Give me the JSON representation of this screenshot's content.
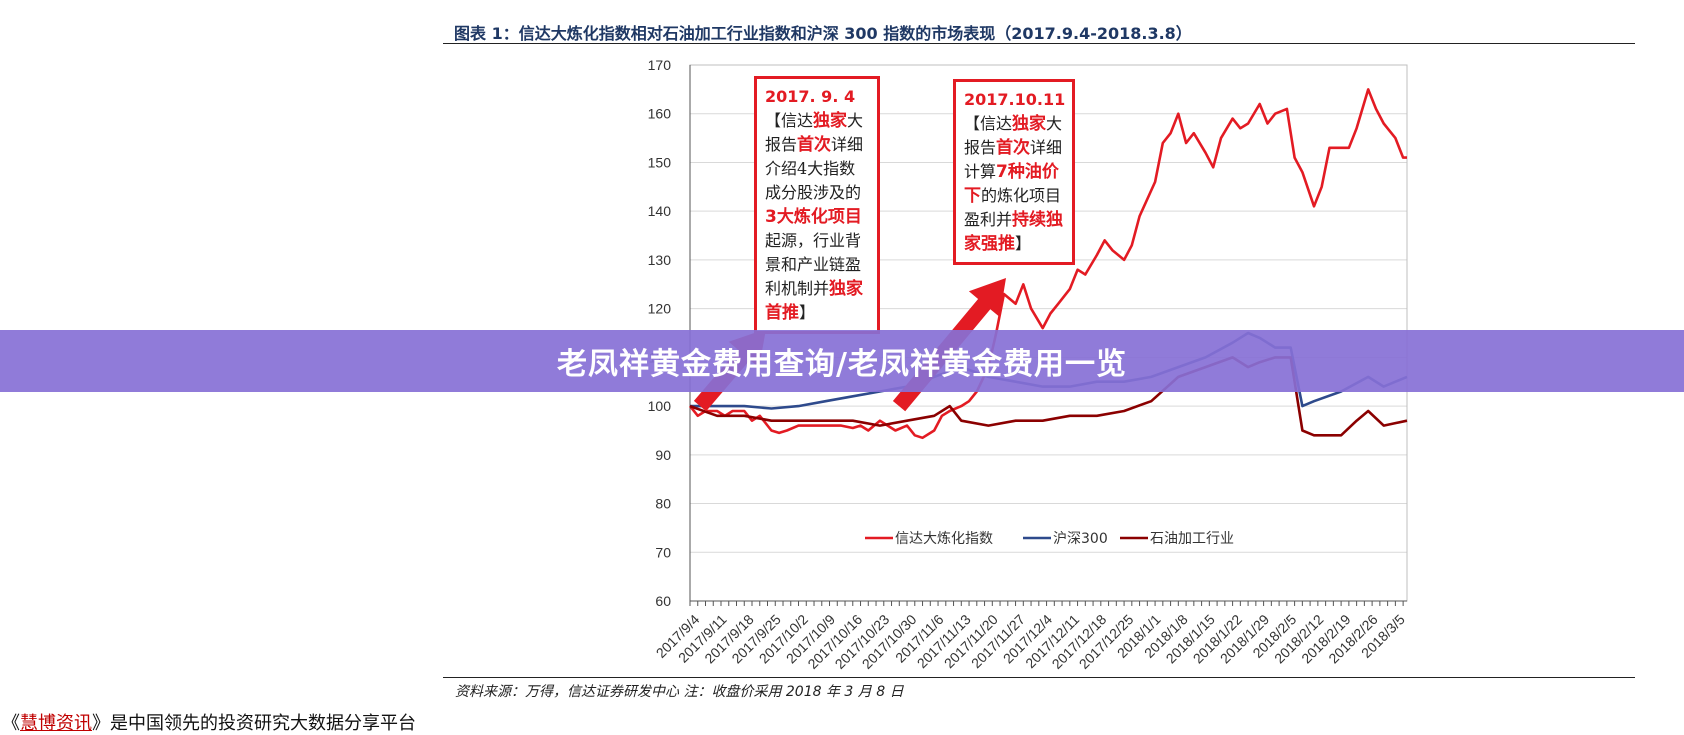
{
  "figure": {
    "title": "图表 1：信达大炼化指数相对石油加工行业指数和沪深 300 指数的市场表现（2017.9.4-2018.3.8）",
    "source": "资料来源：万得，信达证券研发中心 注：收盘价采用 2018 年 3 月 8 日"
  },
  "banner": {
    "text": "老凤祥黄金费用查询/老凤祥黄金费用一览"
  },
  "footer": {
    "prefix": "《",
    "link": "慧博资讯",
    "suffix": "》是中国领先的投资研究大数据分享平台"
  },
  "colors": {
    "red": "#e31b23",
    "blue": "#2e4a8c",
    "darkred": "#8b0000",
    "title": "#1f3864",
    "banner": "#8770d6"
  },
  "annotations": [
    {
      "id": "ann1",
      "date": "2017. 9. 4",
      "parts": [
        [
          "n",
          "【信达"
        ],
        [
          "h",
          "独家"
        ],
        [
          "n",
          "大报告"
        ],
        [
          "h",
          "首次"
        ],
        [
          "n",
          "详细介绍4大指数成分股涉及的"
        ],
        [
          "h",
          "3大炼化项目"
        ],
        [
          "n",
          "起源，行业背景和产业链盈利机制并"
        ],
        [
          "h",
          "独家首推"
        ],
        [
          "n",
          "】"
        ]
      ]
    },
    {
      "id": "ann2",
      "date": "2017.10.11",
      "parts": [
        [
          "n",
          "【信达"
        ],
        [
          "h",
          "独家"
        ],
        [
          "n",
          "大报告"
        ],
        [
          "h",
          "首次"
        ],
        [
          "n",
          "详细计算"
        ],
        [
          "h",
          "7种油价下"
        ],
        [
          "n",
          "的炼化项目盈利并"
        ],
        [
          "h",
          "持续独家强推"
        ],
        [
          "n",
          "】"
        ]
      ]
    }
  ],
  "chart_data": {
    "type": "line",
    "ylim": [
      60,
      170
    ],
    "yticks": [
      60,
      70,
      80,
      90,
      100,
      110,
      120,
      130,
      140,
      150,
      160,
      170
    ],
    "x_tick_labels": [
      "2017/9/4",
      "2017/9/11",
      "2017/9/18",
      "2017/9/25",
      "2017/10/2",
      "2017/10/9",
      "2017/10/16",
      "2017/10/23",
      "2017/10/30",
      "2017/11/6",
      "2017/11/13",
      "2017/11/20",
      "2017/11/27",
      "2017/12/4",
      "2017/12/11",
      "2017/12/18",
      "2017/12/25",
      "2018/1/1",
      "2018/1/8",
      "2018/1/15",
      "2018/1/22",
      "2018/1/29",
      "2018/2/5",
      "2018/2/12",
      "2018/2/19",
      "2018/2/26",
      "2018/3/5"
    ],
    "x_range": [
      "2017/9/4",
      "2018/3/8"
    ],
    "legend_position": "bottom-center",
    "grid": "horizontal",
    "series": [
      {
        "name": "信达大炼化指数",
        "color": "#e31b23",
        "points": [
          [
            "2017/9/4",
            100
          ],
          [
            "2017/9/6",
            98
          ],
          [
            "2017/9/8",
            99
          ],
          [
            "2017/9/11",
            99
          ],
          [
            "2017/9/13",
            98
          ],
          [
            "2017/9/15",
            99
          ],
          [
            "2017/9/18",
            99
          ],
          [
            "2017/9/20",
            97
          ],
          [
            "2017/9/22",
            98
          ],
          [
            "2017/9/25",
            95
          ],
          [
            "2017/9/27",
            94.5
          ],
          [
            "2017/9/29",
            95
          ],
          [
            "2017/10/2",
            96
          ],
          [
            "2017/10/4",
            96
          ],
          [
            "2017/10/9",
            96
          ],
          [
            "2017/10/11",
            96
          ],
          [
            "2017/10/13",
            96
          ],
          [
            "2017/10/16",
            95.5
          ],
          [
            "2017/10/18",
            96
          ],
          [
            "2017/10/20",
            95
          ],
          [
            "2017/10/23",
            97
          ],
          [
            "2017/10/25",
            96
          ],
          [
            "2017/10/27",
            95
          ],
          [
            "2017/10/30",
            96
          ],
          [
            "2017/11/1",
            94
          ],
          [
            "2017/11/3",
            93.5
          ],
          [
            "2017/11/6",
            95
          ],
          [
            "2017/11/8",
            98
          ],
          [
            "2017/11/10",
            99
          ],
          [
            "2017/11/13",
            100
          ],
          [
            "2017/11/15",
            101
          ],
          [
            "2017/11/17",
            103
          ],
          [
            "2017/11/20",
            108
          ],
          [
            "2017/11/22",
            115
          ],
          [
            "2017/11/24",
            123
          ],
          [
            "2017/11/27",
            121
          ],
          [
            "2017/11/29",
            125
          ],
          [
            "2017/12/1",
            120
          ],
          [
            "2017/12/4",
            116
          ],
          [
            "2017/12/6",
            119
          ],
          [
            "2017/12/8",
            121
          ],
          [
            "2017/12/11",
            124
          ],
          [
            "2017/12/13",
            128
          ],
          [
            "2017/12/15",
            127
          ],
          [
            "2017/12/18",
            131
          ],
          [
            "2017/12/20",
            134
          ],
          [
            "2017/12/22",
            132
          ],
          [
            "2017/12/25",
            130
          ],
          [
            "2017/12/27",
            133
          ],
          [
            "2017/12/29",
            139
          ],
          [
            "2018/1/2",
            146
          ],
          [
            "2018/1/4",
            154
          ],
          [
            "2018/1/6",
            156
          ],
          [
            "2018/1/8",
            160
          ],
          [
            "2018/1/10",
            154
          ],
          [
            "2018/1/12",
            156
          ],
          [
            "2018/1/15",
            152
          ],
          [
            "2018/1/17",
            149
          ],
          [
            "2018/1/19",
            155
          ],
          [
            "2018/1/22",
            159
          ],
          [
            "2018/1/24",
            157
          ],
          [
            "2018/1/26",
            158
          ],
          [
            "2018/1/29",
            162
          ],
          [
            "2018/1/31",
            158
          ],
          [
            "2018/2/2",
            160
          ],
          [
            "2018/2/5",
            161
          ],
          [
            "2018/2/7",
            151
          ],
          [
            "2018/2/9",
            148
          ],
          [
            "2018/2/12",
            141
          ],
          [
            "2018/2/14",
            145
          ],
          [
            "2018/2/16",
            153
          ],
          [
            "2018/2/19",
            153
          ],
          [
            "2018/2/21",
            153
          ],
          [
            "2018/2/23",
            157
          ],
          [
            "2018/2/26",
            165
          ],
          [
            "2018/2/28",
            161
          ],
          [
            "2018/3/2",
            158
          ],
          [
            "2018/3/5",
            155
          ],
          [
            "2018/3/7",
            151
          ],
          [
            "2018/3/8",
            151
          ]
        ]
      },
      {
        "name": "沪深300",
        "color": "#2e4a8c",
        "points": [
          [
            "2017/9/4",
            100
          ],
          [
            "2017/9/11",
            100
          ],
          [
            "2017/9/18",
            100
          ],
          [
            "2017/9/25",
            99.5
          ],
          [
            "2017/10/2",
            100
          ],
          [
            "2017/10/9",
            101
          ],
          [
            "2017/10/16",
            102
          ],
          [
            "2017/10/23",
            103
          ],
          [
            "2017/10/30",
            104
          ],
          [
            "2017/11/6",
            106
          ],
          [
            "2017/11/13",
            108
          ],
          [
            "2017/11/20",
            106
          ],
          [
            "2017/11/27",
            105
          ],
          [
            "2017/12/4",
            104
          ],
          [
            "2017/12/11",
            104
          ],
          [
            "2017/12/18",
            105
          ],
          [
            "2017/12/25",
            105
          ],
          [
            "2018/1/1",
            106
          ],
          [
            "2018/1/8",
            108
          ],
          [
            "2018/1/15",
            110
          ],
          [
            "2018/1/22",
            113
          ],
          [
            "2018/1/26",
            115
          ],
          [
            "2018/1/29",
            114
          ],
          [
            "2018/2/2",
            112
          ],
          [
            "2018/2/6",
            112
          ],
          [
            "2018/2/9",
            100
          ],
          [
            "2018/2/12",
            101
          ],
          [
            "2018/2/19",
            103
          ],
          [
            "2018/2/26",
            106
          ],
          [
            "2018/3/2",
            104
          ],
          [
            "2018/3/8",
            106
          ]
        ]
      },
      {
        "name": "石油加工行业",
        "color": "#8b0000",
        "points": [
          [
            "2017/9/4",
            100
          ],
          [
            "2017/9/11",
            98
          ],
          [
            "2017/9/18",
            98
          ],
          [
            "2017/9/25",
            97
          ],
          [
            "2017/10/2",
            97
          ],
          [
            "2017/10/9",
            97
          ],
          [
            "2017/10/16",
            97
          ],
          [
            "2017/10/23",
            96
          ],
          [
            "2017/10/30",
            97
          ],
          [
            "2017/11/6",
            98
          ],
          [
            "2017/11/10",
            100
          ],
          [
            "2017/11/13",
            97
          ],
          [
            "2017/11/20",
            96
          ],
          [
            "2017/11/27",
            97
          ],
          [
            "2017/12/4",
            97
          ],
          [
            "2017/12/11",
            98
          ],
          [
            "2017/12/18",
            98
          ],
          [
            "2017/12/25",
            99
          ],
          [
            "2018/1/1",
            101
          ],
          [
            "2018/1/8",
            106
          ],
          [
            "2018/1/15",
            108
          ],
          [
            "2018/1/22",
            110
          ],
          [
            "2018/1/26",
            108
          ],
          [
            "2018/1/29",
            109
          ],
          [
            "2018/2/2",
            110
          ],
          [
            "2018/2/6",
            110
          ],
          [
            "2018/2/9",
            95
          ],
          [
            "2018/2/12",
            94
          ],
          [
            "2018/2/19",
            94
          ],
          [
            "2018/2/23",
            97
          ],
          [
            "2018/2/26",
            99
          ],
          [
            "2018/3/2",
            96
          ],
          [
            "2018/3/8",
            97
          ]
        ]
      }
    ]
  }
}
